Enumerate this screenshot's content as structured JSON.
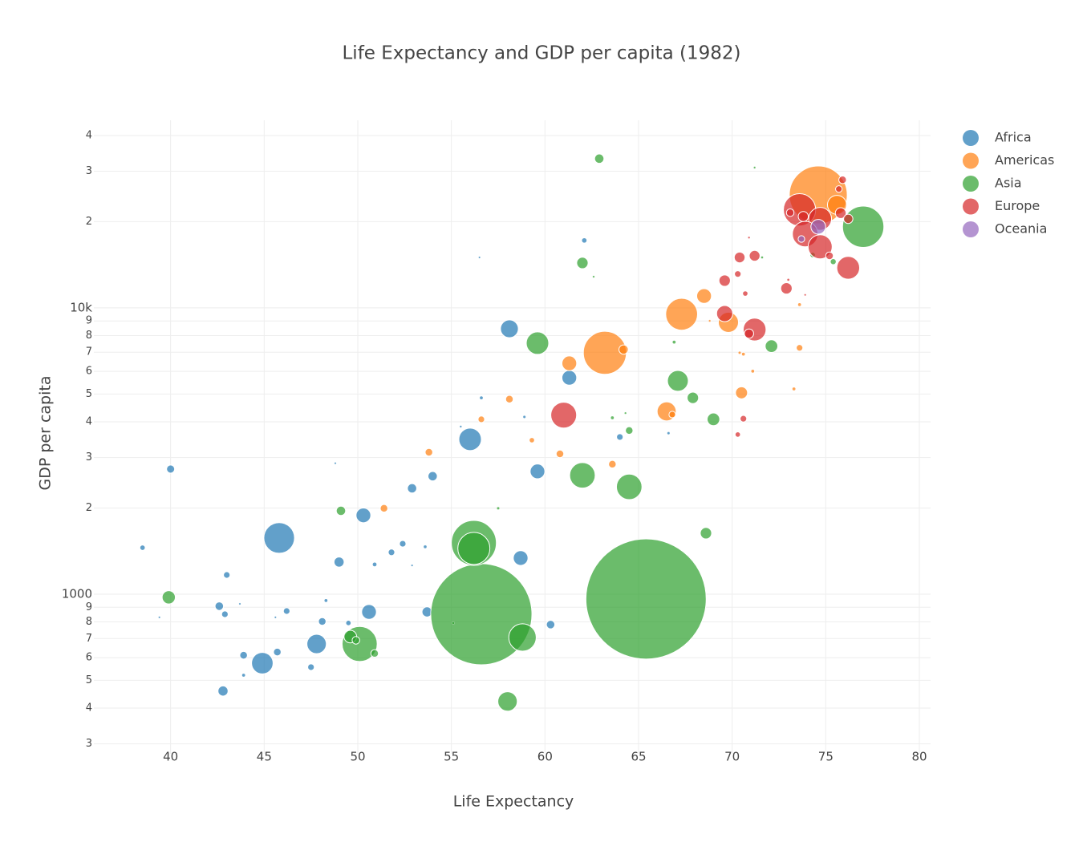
{
  "chart_data": {
    "type": "bubble",
    "title": "Life Expectancy and GDP per capita (1982)",
    "x_label": "Life Expectancy",
    "y_label": "GDP per capita",
    "xlim": [
      35.9,
      80.6
    ],
    "ylim": [
      277,
      45200
    ],
    "y_scale": "log",
    "grid": true,
    "legend": "top-right",
    "xticks": [
      40,
      45,
      50,
      55,
      60,
      65,
      70,
      75,
      80
    ],
    "yticks": [
      {
        "value": 300,
        "label": "3"
      },
      {
        "value": 400,
        "label": "4"
      },
      {
        "value": 500,
        "label": "5"
      },
      {
        "value": 600,
        "label": "6"
      },
      {
        "value": 700,
        "label": "7"
      },
      {
        "value": 800,
        "label": "8"
      },
      {
        "value": 900,
        "label": "9"
      },
      1000,
      {
        "value": 2000,
        "label": "2"
      },
      {
        "value": 3000,
        "label": "3"
      },
      {
        "value": 4000,
        "label": "4"
      },
      {
        "value": 5000,
        "label": "5"
      },
      {
        "value": 6000,
        "label": "6"
      },
      {
        "value": 7000,
        "label": "7"
      },
      {
        "value": 8000,
        "label": "8"
      },
      {
        "value": 9000,
        "label": "9"
      },
      {
        "value": 10000,
        "label": "10k"
      },
      {
        "value": 20000,
        "label": "2"
      },
      {
        "value": 30000,
        "label": "3"
      },
      {
        "value": 40000,
        "label": "4"
      }
    ],
    "series": [
      {
        "name": "Africa",
        "color": "#1f77b4",
        "x": [
          40.0,
          38.5,
          45.8,
          50.3,
          49.0,
          51.8,
          52.4,
          50.9,
          53.6,
          43.0,
          42.6,
          42.9,
          39.4,
          46.2,
          48.3,
          48.1,
          49.5,
          50.6,
          53.7,
          47.8,
          44.9,
          43.9,
          45.7,
          47.5,
          43.9,
          42.8,
          60.3,
          58.7,
          59.6,
          56.0,
          54.0,
          52.9,
          58.1,
          61.3,
          62.1,
          64.0,
          56.6,
          56.5,
          58.9,
          55.5,
          66.6,
          48.8,
          52.9,
          43.7,
          45.6
        ],
        "values": [
          2735,
          1453,
          1572,
          1885,
          1295,
          1400,
          1500,
          1270,
          1464,
          1167,
          908,
          851,
          830,
          873,
          950,
          803,
          793,
          867,
          867,
          670,
          574,
          612,
          628,
          556,
          521,
          459,
          783,
          1337,
          2684,
          3474,
          2582,
          2342,
          8450,
          5700,
          17200,
          3540,
          4850,
          15000,
          4160,
          3850,
          3650,
          2866,
          1260,
          925,
          830
        ],
        "sizes": [
          4.5,
          2,
          65,
          15,
          7,
          3,
          3,
          1.5,
          0.7,
          3,
          5,
          3,
          0.2,
          3,
          1,
          4,
          2,
          15,
          7,
          26,
          32,
          4,
          4,
          3,
          1,
          7,
          5,
          15,
          15,
          35,
          6,
          6,
          22,
          15,
          2,
          3,
          1,
          0.1,
          0.5,
          0.3,
          0.5,
          0.1,
          0.2,
          0.1,
          0.2
        ]
      },
      {
        "name": "Americas",
        "color": "#ff7f0e",
        "x": [
          74.6,
          75.6,
          67.3,
          63.2,
          69.8,
          66.5,
          68.5,
          61.3,
          64.2,
          70.5,
          73.6,
          73.6,
          71.1,
          70.6,
          70.4,
          73.3,
          66.8,
          63.6,
          60.8,
          59.3,
          58.1,
          56.6,
          53.8,
          51.4,
          68.8
        ],
        "values": [
          24800,
          22900,
          9500,
          6970,
          8900,
          4350,
          11000,
          6400,
          7150,
          5050,
          7250,
          10260,
          6010,
          6890,
          6970,
          5210,
          4240,
          2845,
          3090,
          3450,
          4800,
          4080,
          3130,
          1995,
          9010
        ],
        "sizes": [
          232,
          25,
          70,
          128,
          28,
          25,
          15,
          15,
          6,
          10,
          3,
          1,
          1,
          1,
          0.5,
          1,
          3,
          4,
          4,
          2,
          4,
          3,
          4,
          4,
          0.3
        ]
      },
      {
        "name": "Asia",
        "color": "#2ca02c",
        "x": [
          65.4,
          56.6,
          56.2,
          56.2,
          77.0,
          50.1,
          58.8,
          49.6,
          49.9,
          62.0,
          64.5,
          59.6,
          67.1,
          58.0,
          68.6,
          69.0,
          67.9,
          72.1,
          62.0,
          62.9,
          64.5,
          50.9,
          49.1,
          39.9,
          71.2,
          75.4,
          74.3,
          71.6,
          62.6,
          66.9,
          63.6,
          64.3,
          57.5,
          55.1
        ],
        "values": [
          962,
          851,
          1510,
          1445,
          19200,
          670,
          706,
          711,
          690,
          2600,
          2370,
          7530,
          5560,
          422,
          1633,
          4080,
          4850,
          7350,
          14350,
          33200,
          3730,
          621,
          1955,
          975,
          30900,
          14500,
          15300,
          15000,
          12850,
          7590,
          4130,
          4290,
          1995,
          793
        ],
        "sizes": [
          1000,
          708,
          140,
          71,
          118,
          85,
          52,
          11,
          4,
          45,
          45,
          35,
          30,
          26,
          9,
          11,
          9,
          11,
          9,
          6,
          4,
          4,
          6,
          12,
          0.3,
          2.5,
          2,
          0.4,
          0.3,
          1,
          1,
          0.3,
          0.5,
          0.5
        ]
      },
      {
        "name": "Europe",
        "color": "#d62728",
        "x": [
          73.6,
          74.7,
          73.9,
          74.7,
          76.2,
          71.2,
          61.0,
          69.6,
          75.8,
          76.2,
          75.7,
          75.9,
          73.1,
          73.8,
          71.2,
          70.4,
          69.6,
          72.9,
          70.3,
          70.7,
          70.9,
          70.6,
          70.3,
          73.0,
          70.9,
          73.9,
          75.2
        ],
        "values": [
          22000,
          20460,
          18100,
          16340,
          13800,
          8400,
          4220,
          9550,
          21430,
          20460,
          26000,
          28000,
          21500,
          20850,
          15200,
          15000,
          12450,
          11700,
          13130,
          11220,
          8130,
          4100,
          3610,
          12530,
          17600,
          11100,
          15200
        ],
        "sizes": [
          72,
          36,
          45,
          40,
          36,
          36,
          46,
          18,
          8,
          6,
          3,
          4,
          4,
          7,
          8,
          8,
          9,
          9,
          3,
          2,
          6,
          3,
          2,
          0.4,
          0.3,
          0.1,
          4
        ]
      },
      {
        "name": "Oceania",
        "color": "#9467bd",
        "x": [
          74.6,
          73.7
        ],
        "values": [
          19200,
          17400
        ],
        "sizes": [
          15,
          3
        ]
      }
    ]
  }
}
